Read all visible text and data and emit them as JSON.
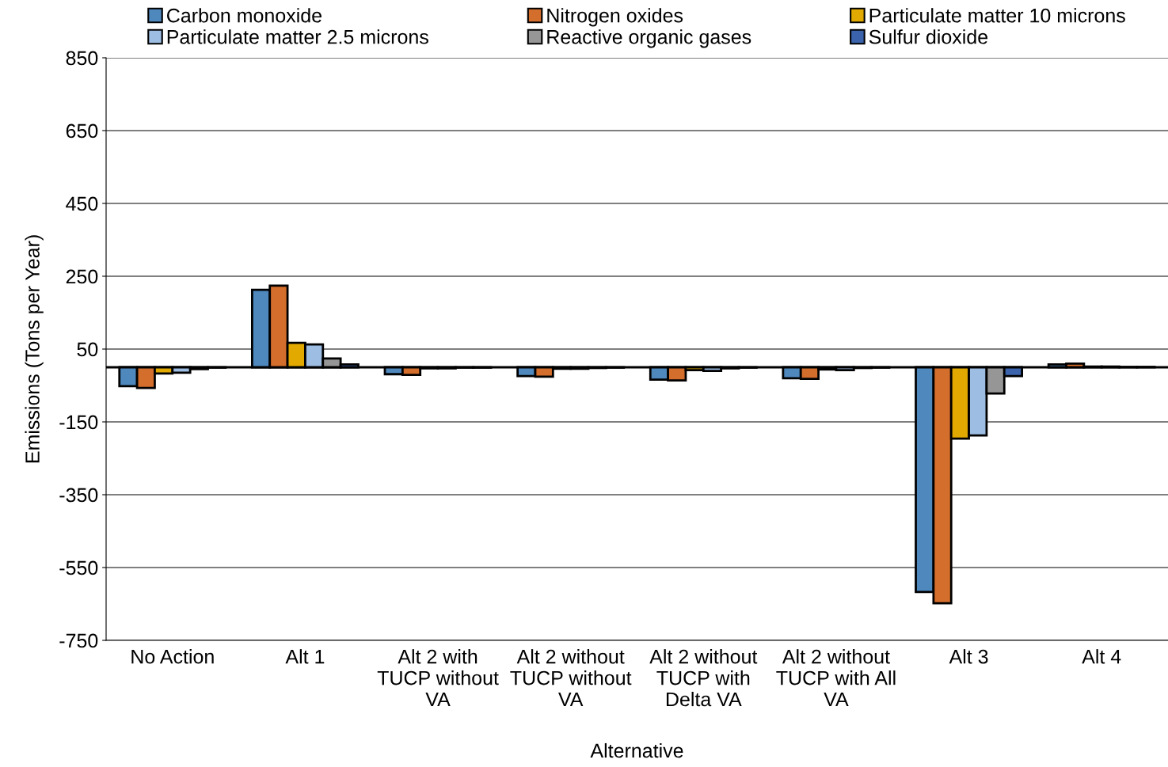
{
  "chart_data": {
    "type": "bar",
    "xlabel": "Alternative",
    "ylabel": "Emissions (Tons per Year)",
    "categories": [
      "No Action",
      "Alt 1",
      "Alt 2 with\nTUCP without\nVA",
      "Alt 2 without\nTUCP without\nVA",
      "Alt 2 without\nTUCP with\nDelta VA",
      "Alt 2 without\nTUCP with All\nVA",
      "Alt 3",
      "Alt 4"
    ],
    "series": [
      {
        "name": "Carbon monoxide",
        "color": "#4f88bd",
        "values": [
          -52,
          213,
          -19,
          -24,
          -34,
          -30,
          -617,
          8
        ]
      },
      {
        "name": "Nitrogen oxides",
        "color": "#d46e2c",
        "values": [
          -57,
          224,
          -21,
          -26,
          -36,
          -32,
          -648,
          10
        ]
      },
      {
        "name": "Particulate matter 10 microns",
        "color": "#e2aa00",
        "values": [
          -17,
          67,
          -3,
          -4,
          -8,
          -6,
          -196,
          2
        ]
      },
      {
        "name": "Particulate matter 2.5 microns",
        "color": "#9dbde3",
        "values": [
          -15,
          63,
          -3,
          -4,
          -10,
          -8,
          -187,
          2
        ]
      },
      {
        "name": "Reactive organic gases",
        "color": "#969696",
        "values": [
          -5,
          24,
          -1,
          -2,
          -3,
          -2,
          -72,
          1
        ]
      },
      {
        "name": "Sulfur dioxide",
        "color": "#3b64ad",
        "values": [
          -1,
          8,
          -1,
          -1,
          -1,
          -1,
          -24,
          1
        ]
      }
    ],
    "ylim": [
      -750,
      850
    ],
    "yticks": [
      -750,
      -550,
      -350,
      -150,
      50,
      250,
      450,
      650,
      850
    ],
    "grid": "y",
    "legend": "top"
  }
}
